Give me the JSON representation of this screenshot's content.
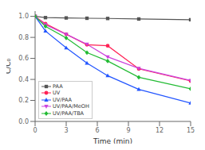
{
  "chart_data": {
    "type": "line",
    "xlabel": "Time (min)",
    "ylabel": "C/C₀",
    "x": [
      0,
      1,
      3,
      5,
      7,
      10,
      15
    ],
    "xlim": [
      0,
      15
    ],
    "ylim": [
      0.0,
      1.05
    ],
    "xticks": [
      0,
      3,
      6,
      9,
      12,
      15
    ],
    "yticks": [
      {
        "value": 0.0,
        "label": "0.0"
      },
      0.2,
      0.4,
      0.6,
      0.8,
      {
        "value": 1.0,
        "label": "1.0"
      }
    ],
    "grid": false,
    "legend": "lower left",
    "series": [
      {
        "name": "PAA",
        "color": "#555555",
        "marker": "square",
        "values": [
          1.0,
          0.988,
          0.985,
          0.982,
          0.98,
          0.975,
          0.968
        ]
      },
      {
        "name": "UV",
        "color": "#ff2255",
        "marker": "circle",
        "values": [
          1.0,
          0.93,
          0.83,
          0.73,
          0.72,
          0.5,
          0.385
        ]
      },
      {
        "name": "UV/PAA",
        "color": "#2255ff",
        "marker": "triangle-up",
        "values": [
          1.0,
          0.86,
          0.7,
          0.555,
          0.435,
          0.305,
          0.175
        ]
      },
      {
        "name": "UV/PAA/MeOH",
        "color": "#cc44dd",
        "marker": "triangle-down",
        "values": [
          1.0,
          0.92,
          0.83,
          0.735,
          0.615,
          0.505,
          0.39
        ]
      },
      {
        "name": "UV/PAA/TBA",
        "color": "#22bb33",
        "marker": "diamond",
        "values": [
          1.0,
          0.905,
          0.795,
          0.655,
          0.575,
          0.42,
          0.31
        ]
      }
    ]
  }
}
